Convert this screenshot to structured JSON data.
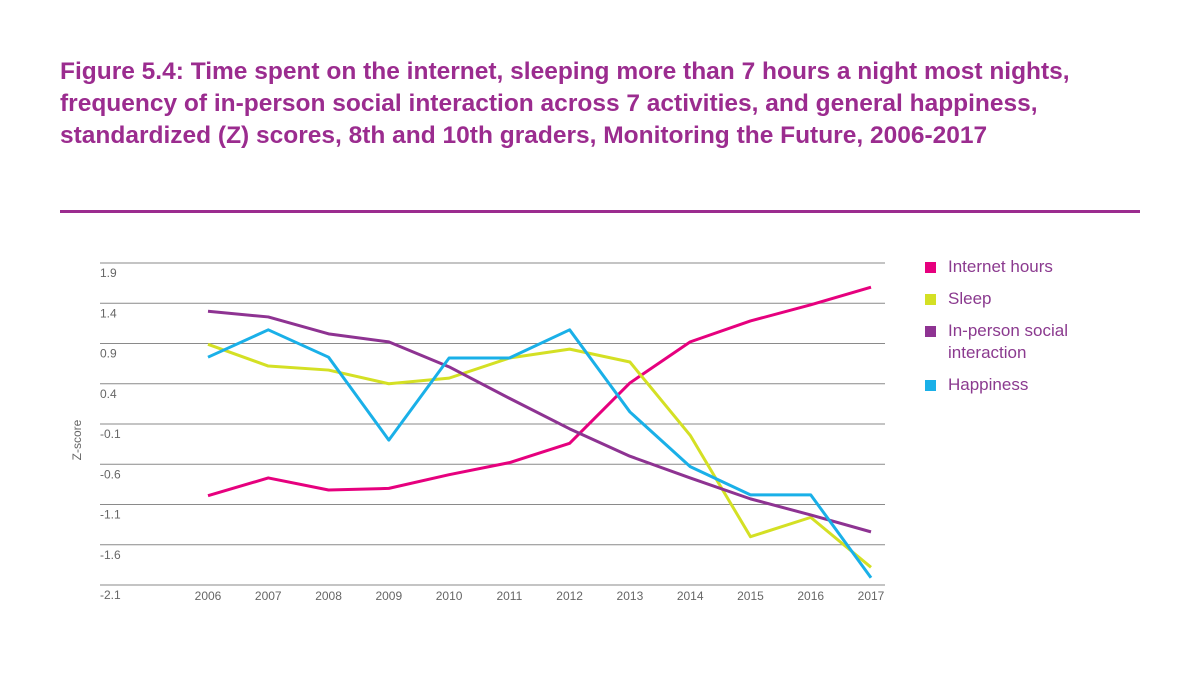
{
  "chart_data": {
    "type": "line",
    "title": "Figure 5.4: Time spent on the internet, sleeping more than 7 hours a night most nights, frequency of in-person social interaction across 7 activities, and general happiness, standardized (Z) scores, 8th and 10th graders, Monitoring the Future, 2006-2017",
    "y_label": "Z-score",
    "categories": [
      "2006",
      "2007",
      "2008",
      "2009",
      "2010",
      "2011",
      "2012",
      "2013",
      "2014",
      "2015",
      "2016",
      "2017"
    ],
    "ylim": [
      -2.1,
      1.9
    ],
    "yticks": [
      -2.1,
      -1.6,
      -1.1,
      -0.6,
      -0.1,
      0.4,
      0.9,
      1.4,
      1.9
    ],
    "grid": true,
    "legend": "right",
    "series": [
      {
        "name": "Internet hours",
        "color": "#e6007e",
        "values": [
          -0.99,
          -0.77,
          -0.92,
          -0.9,
          -0.73,
          -0.58,
          -0.34,
          0.41,
          0.92,
          1.18,
          1.38,
          1.6
        ]
      },
      {
        "name": "Sleep",
        "color": "#d4e024",
        "values": [
          0.89,
          0.62,
          0.57,
          0.4,
          0.47,
          0.72,
          0.83,
          0.67,
          -0.24,
          -1.5,
          -1.26,
          -1.88
        ]
      },
      {
        "name": "In-person social interaction",
        "color": "#8e3392",
        "values": [
          1.3,
          1.23,
          1.02,
          0.92,
          0.61,
          0.22,
          -0.16,
          -0.5,
          -0.77,
          -1.03,
          -1.23,
          -1.44
        ]
      },
      {
        "name": "Happiness",
        "color": "#1ab0e8",
        "values": [
          0.73,
          1.07,
          0.73,
          -0.3,
          0.72,
          0.72,
          1.07,
          0.05,
          -0.63,
          -0.98,
          -0.98,
          -2.01
        ]
      }
    ]
  }
}
